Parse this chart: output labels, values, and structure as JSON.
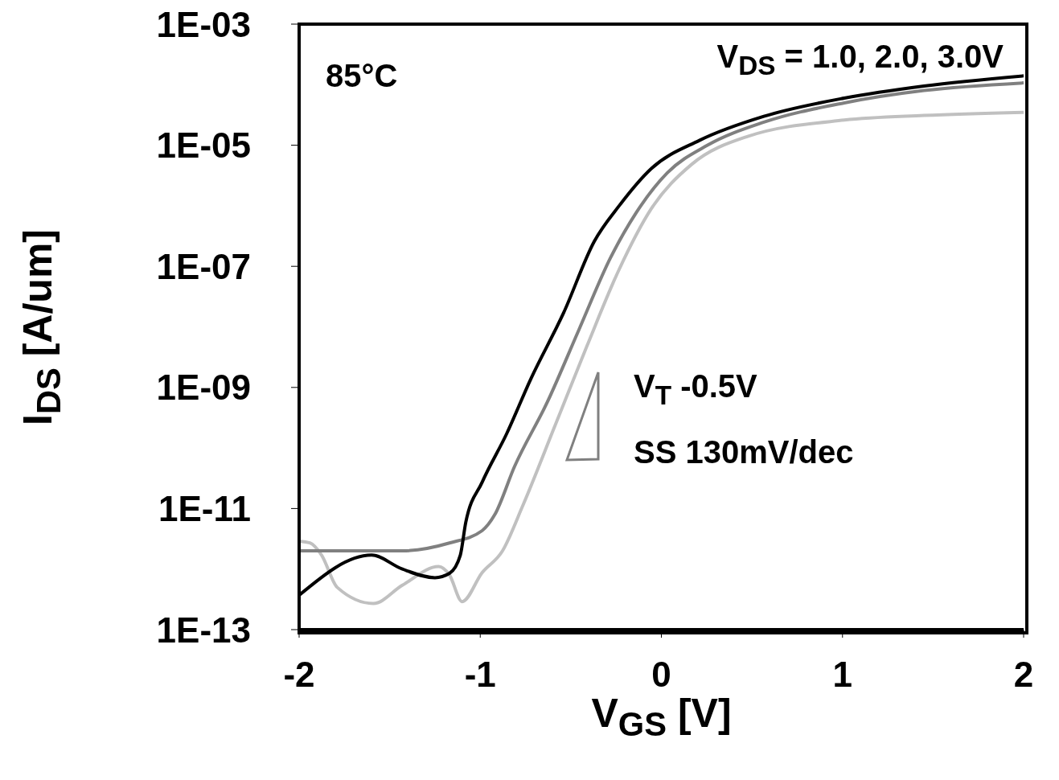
{
  "chart_data": {
    "type": "line",
    "xlabel": "V$_{GS}$ [V]",
    "ylabel": "I$_{DS}$ [A/um]",
    "log": "y",
    "line_style": "solid",
    "xlim": [
      -2,
      2
    ],
    "xticks": [
      -2,
      -1,
      0,
      1,
      2
    ],
    "ylim": [
      1e-13,
      0.001
    ],
    "yticks": [
      {
        "value": 0.001,
        "label": "1E-03"
      },
      {
        "value": 1e-05,
        "label": "1E-05"
      },
      {
        "value": 1e-07,
        "label": "1E-07"
      },
      {
        "value": 1e-09,
        "label": "1E-09"
      },
      {
        "value": 1e-11,
        "label": "1E-11"
      },
      {
        "value": 1e-13,
        "label": "1E-13"
      }
    ],
    "annotations": [
      "85°C",
      "V$_{DS}$ = 1.0, 2.0, 3.0V",
      "V$_{T}$ -0.5V",
      "SS 130mV/dec"
    ],
    "series": [
      {
        "color": "#c0c0c0",
        "x": [
          -2,
          -1.94,
          -1.876,
          -1.79,
          -1.59,
          -1.43,
          -1.23,
          -1.17,
          -1.1,
          -0.99,
          -0.877,
          -0.766,
          -0.588,
          -0.41,
          -0.233,
          -0.056,
          0.166,
          0.477,
          1.01,
          1.45,
          2
        ],
        "values": [
          2.9e-12,
          2.7e-12,
          1.7e-12,
          5e-13,
          2.7e-13,
          5.4e-13,
          1.1e-12,
          8e-13,
          2.9e-13,
          8.7e-13,
          2e-12,
          1.1e-11,
          2.3e-10,
          4.9e-09,
          8.9e-08,
          8.9e-07,
          4.8e-06,
          1.4e-05,
          2.6e-05,
          3.1e-05,
          3.5e-05
        ]
      },
      {
        "color": "#808080",
        "x": [
          -2,
          -1.65,
          -1.43,
          -1.17,
          -0.99,
          -0.92,
          -0.81,
          -0.63,
          -0.455,
          -0.28,
          -0.14,
          0.033,
          0.255,
          0.566,
          1.01,
          1.45,
          2
        ],
        "values": [
          2e-12,
          2e-12,
          2e-12,
          2.7e-12,
          4.3e-12,
          7.9e-12,
          5e-11,
          5.7e-10,
          9e-09,
          1.4e-07,
          7.6e-07,
          3.5e-06,
          1e-05,
          2.4e-05,
          5e-05,
          8e-05,
          0.000107
        ]
      },
      {
        "color": "#000000",
        "x": [
          -2,
          -1.6,
          -1.43,
          -1.25,
          -1.17,
          -1.11,
          -1.08,
          -0.99,
          -0.855,
          -0.72,
          -0.54,
          -0.37,
          -0.233,
          -0.056,
          0.21,
          0.566,
          1.01,
          1.45,
          2
        ],
        "values": [
          3.7e-13,
          1.7e-12,
          1e-12,
          7.2e-13,
          8.5e-13,
          1.7e-12,
          5.9e-12,
          2.7e-11,
          1.7e-10,
          1.4e-09,
          1.7e-08,
          2.6e-07,
          1e-06,
          4.1e-06,
          1.2e-05,
          3e-05,
          6e-05,
          9.5e-05,
          0.00014
        ]
      }
    ]
  }
}
